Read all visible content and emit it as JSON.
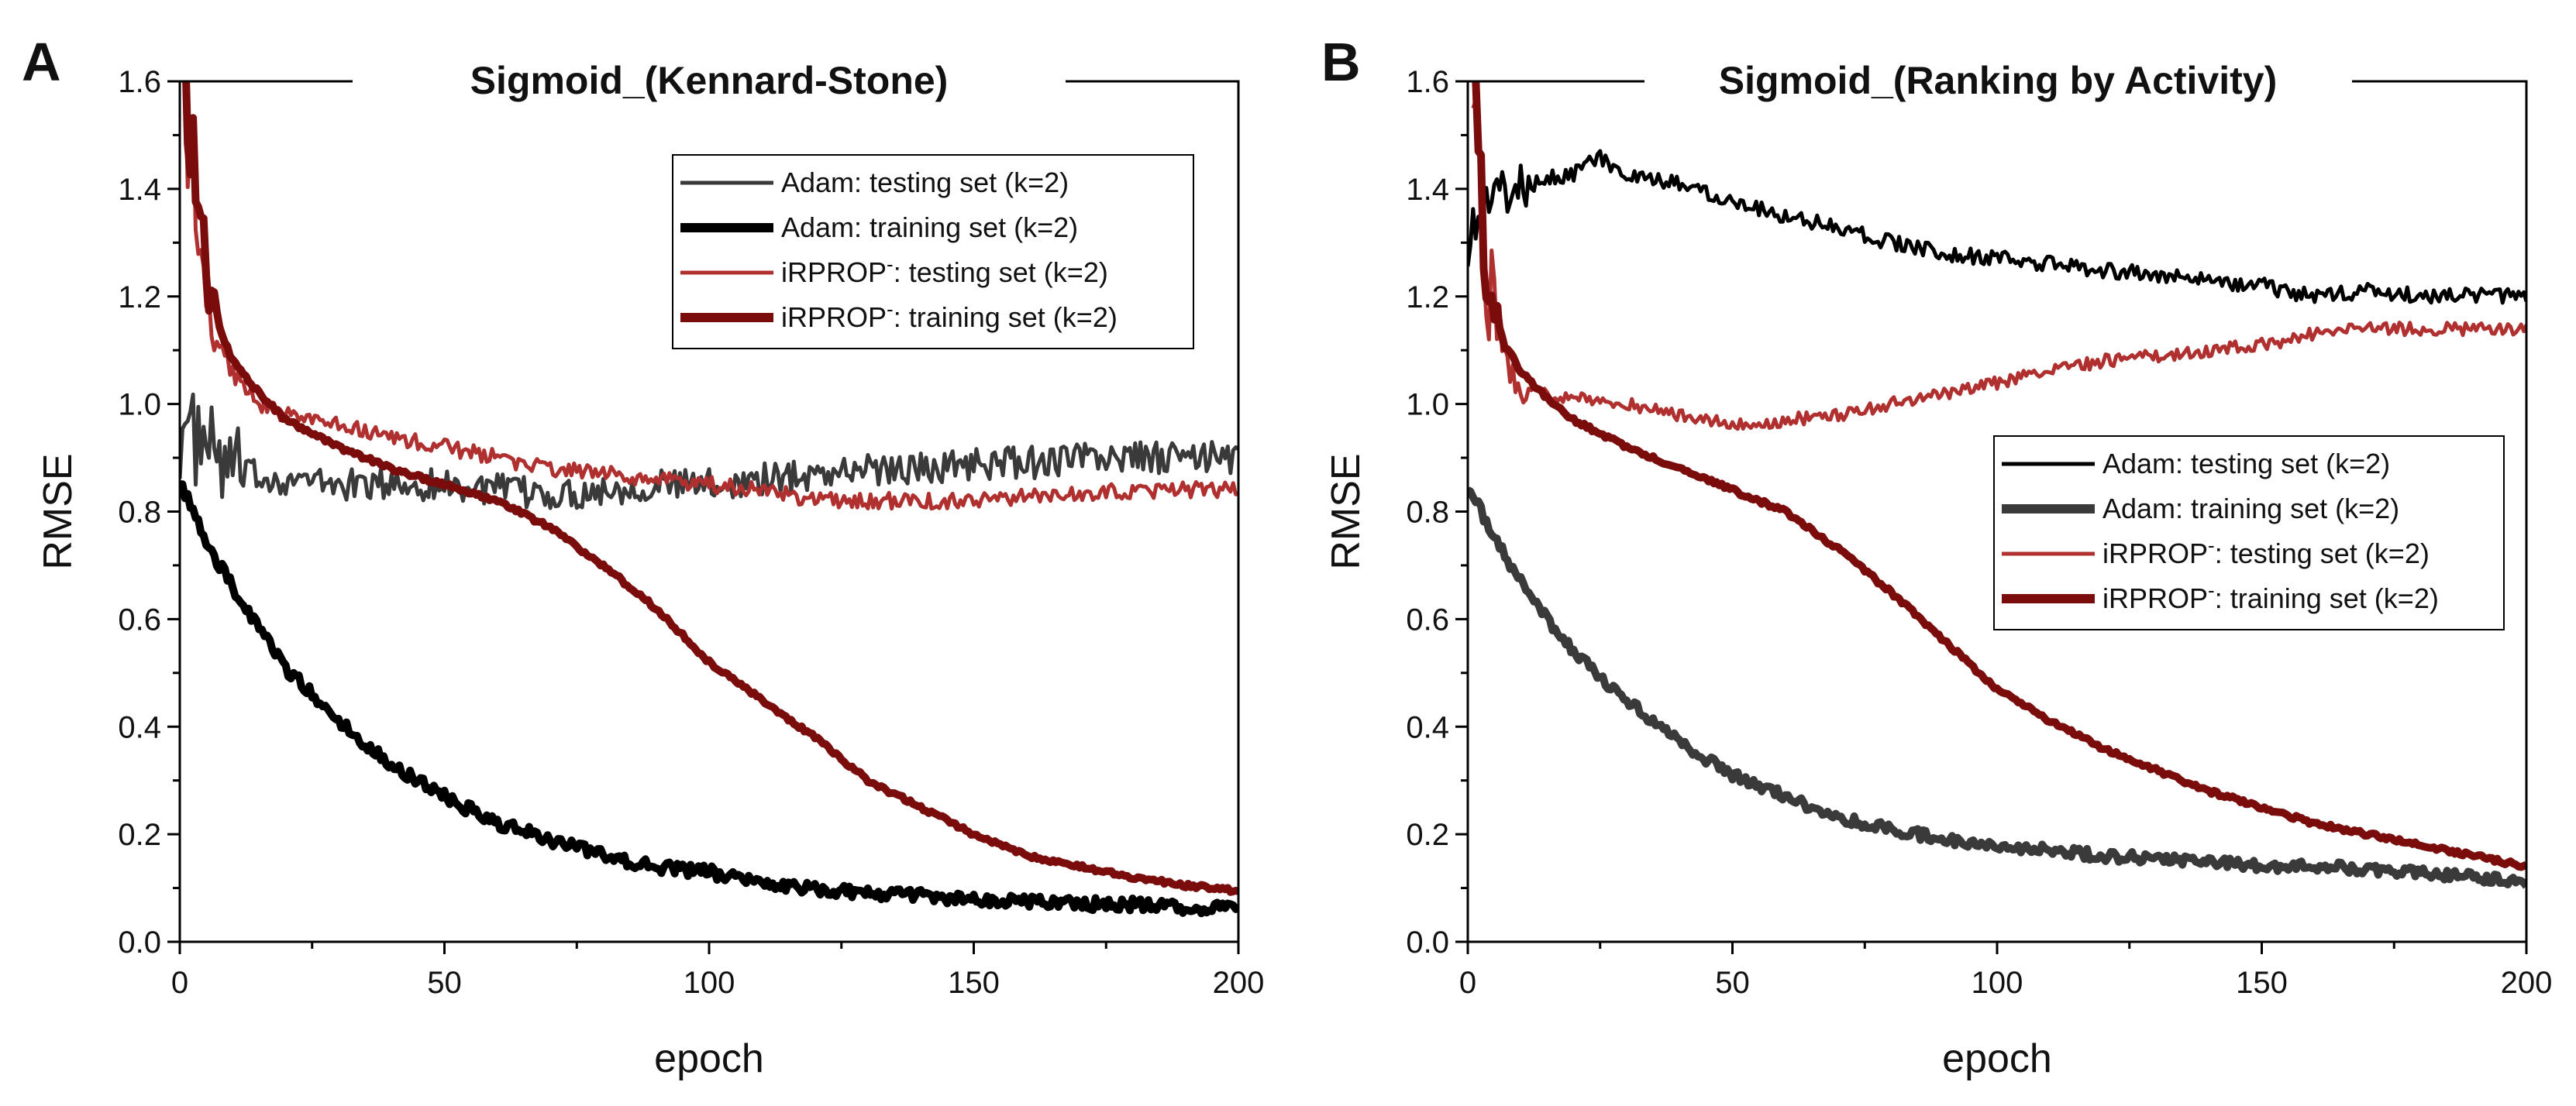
{
  "chart_data": [
    {
      "type": "line",
      "panel_label": "A",
      "title": "Sigmoid_(Kennard-Stone)",
      "xlabel": "epoch",
      "ylabel": "RMSE",
      "xlim": [
        0,
        200
      ],
      "ylim": [
        0,
        1.6
      ],
      "xticks": [
        "0",
        "50",
        "100",
        "150",
        "200"
      ],
      "yticks": [
        "0.0",
        "0.2",
        "0.4",
        "0.6",
        "0.8",
        "1.0",
        "1.2",
        "1.4",
        "1.6"
      ],
      "legend_position": "top-right",
      "series": [
        {
          "name": "Adam: testing set (k=2)",
          "legend_label": "Adam: testing set (k=2)",
          "color": "#3a3a3a",
          "width": "thin",
          "noise": 0.03,
          "x": [
            0,
            5,
            10,
            20,
            30,
            40,
            50,
            60,
            70,
            80,
            90,
            100,
            110,
            120,
            130,
            140,
            150,
            160,
            170,
            180,
            190,
            200
          ],
          "values": [
            0.95,
            0.92,
            0.87,
            0.86,
            0.85,
            0.85,
            0.85,
            0.84,
            0.83,
            0.84,
            0.85,
            0.85,
            0.86,
            0.87,
            0.88,
            0.88,
            0.89,
            0.89,
            0.9,
            0.9,
            0.9,
            0.9
          ]
        },
        {
          "name": "Adam: training set (k=2)",
          "legend_label": "Adam: training set (k=2)",
          "color": "#000000",
          "width": "thick",
          "noise": 0.012,
          "x": [
            0,
            5,
            10,
            15,
            20,
            30,
            40,
            50,
            60,
            70,
            80,
            90,
            100,
            110,
            120,
            130,
            140,
            150,
            160,
            170,
            180,
            190,
            200
          ],
          "values": [
            0.86,
            0.74,
            0.66,
            0.58,
            0.51,
            0.41,
            0.33,
            0.27,
            0.22,
            0.19,
            0.16,
            0.14,
            0.13,
            0.11,
            0.1,
            0.09,
            0.085,
            0.08,
            0.075,
            0.07,
            0.07,
            0.065,
            0.06
          ]
        },
        {
          "name": "iRPROP-: testing set (k=2)",
          "legend_label": "iRPROP",
          "legend_sup": "-",
          "legend_rest": ": testing set (k=2)",
          "color": "#b03030",
          "width": "thin",
          "noise": 0.015,
          "x": [
            1,
            3,
            5,
            7,
            10,
            15,
            20,
            30,
            40,
            50,
            60,
            70,
            80,
            90,
            100,
            110,
            120,
            130,
            140,
            150,
            160,
            170,
            180,
            190,
            200
          ],
          "values": [
            1.6,
            1.3,
            1.2,
            1.1,
            1.05,
            1.0,
            0.98,
            0.96,
            0.94,
            0.92,
            0.9,
            0.88,
            0.87,
            0.86,
            0.85,
            0.84,
            0.82,
            0.82,
            0.82,
            0.82,
            0.83,
            0.83,
            0.84,
            0.84,
            0.84
          ]
        },
        {
          "name": "iRPROP-: training set (k=2)",
          "legend_label": "iRPROP",
          "legend_sup": "-",
          "legend_rest": ": training set (k=2)",
          "color": "#7a0c0c",
          "width": "thick",
          "noise": 0.004,
          "x": [
            1,
            3,
            5,
            7,
            10,
            15,
            20,
            30,
            40,
            50,
            60,
            70,
            80,
            90,
            100,
            110,
            120,
            130,
            140,
            150,
            160,
            170,
            180,
            190,
            200
          ],
          "values": [
            1.6,
            1.35,
            1.25,
            1.15,
            1.08,
            1.02,
            0.97,
            0.92,
            0.88,
            0.85,
            0.82,
            0.77,
            0.7,
            0.62,
            0.52,
            0.45,
            0.38,
            0.3,
            0.25,
            0.2,
            0.16,
            0.14,
            0.12,
            0.105,
            0.095
          ]
        }
      ]
    },
    {
      "type": "line",
      "panel_label": "B",
      "title": "Sigmoid_(Ranking by Activity)",
      "xlabel": "epoch",
      "ylabel": "RMSE",
      "xlim": [
        0,
        200
      ],
      "ylim": [
        0,
        1.6
      ],
      "xticks": [
        "0",
        "50",
        "100",
        "150",
        "200"
      ],
      "yticks": [
        "0.0",
        "0.2",
        "0.4",
        "0.6",
        "0.8",
        "1.0",
        "1.2",
        "1.4",
        "1.6"
      ],
      "legend_position": "center-right",
      "series": [
        {
          "name": "Adam: testing set (k=2)",
          "legend_label": "Adam: testing set (k=2)",
          "color": "#000000",
          "width": "thin",
          "noise": 0.015,
          "x": [
            0,
            3,
            5,
            10,
            15,
            20,
            25,
            30,
            40,
            50,
            60,
            70,
            80,
            90,
            100,
            110,
            120,
            130,
            140,
            150,
            160,
            170,
            180,
            190,
            200
          ],
          "values": [
            1.3,
            1.38,
            1.39,
            1.4,
            1.42,
            1.43,
            1.46,
            1.42,
            1.41,
            1.38,
            1.35,
            1.33,
            1.3,
            1.28,
            1.27,
            1.26,
            1.25,
            1.24,
            1.23,
            1.22,
            1.2,
            1.21,
            1.2,
            1.2,
            1.2
          ]
        },
        {
          "name": "Adam: training set (k=2)",
          "legend_label": "Adam: training set (k=2)",
          "color": "#3a3a3a",
          "width": "thick",
          "noise": 0.01,
          "x": [
            0,
            5,
            10,
            15,
            20,
            25,
            30,
            35,
            40,
            50,
            60,
            70,
            80,
            90,
            100,
            110,
            120,
            130,
            140,
            150,
            160,
            170,
            180,
            190,
            200
          ],
          "values": [
            0.85,
            0.75,
            0.67,
            0.6,
            0.54,
            0.49,
            0.45,
            0.41,
            0.37,
            0.31,
            0.27,
            0.23,
            0.21,
            0.19,
            0.18,
            0.17,
            0.16,
            0.155,
            0.15,
            0.14,
            0.14,
            0.135,
            0.13,
            0.12,
            0.11
          ]
        },
        {
          "name": "iRPROP-: testing set (k=2)",
          "legend_label": "iRPROP",
          "legend_sup": "-",
          "legend_rest": ": testing set (k=2)",
          "color": "#b03030",
          "width": "thin",
          "noise": 0.012,
          "x": [
            1,
            3,
            5,
            7,
            10,
            15,
            20,
            30,
            40,
            50,
            60,
            70,
            80,
            90,
            100,
            110,
            120,
            130,
            140,
            150,
            160,
            170,
            180,
            190,
            200
          ],
          "values": [
            1.6,
            1.3,
            1.15,
            1.08,
            1.04,
            1.02,
            1.01,
            1.0,
            0.98,
            0.96,
            0.97,
            0.98,
            1.0,
            1.02,
            1.04,
            1.06,
            1.08,
            1.09,
            1.1,
            1.11,
            1.13,
            1.14,
            1.14,
            1.14,
            1.14
          ]
        },
        {
          "name": "iRPROP-: training set (k=2)",
          "legend_label": "iRPROP",
          "legend_sup": "-",
          "legend_rest": ": training set (k=2)",
          "color": "#7a0c0c",
          "width": "thick",
          "noise": 0.004,
          "x": [
            1,
            3,
            5,
            7,
            10,
            15,
            20,
            30,
            40,
            50,
            60,
            70,
            80,
            90,
            100,
            110,
            120,
            130,
            140,
            150,
            160,
            170,
            180,
            190,
            200
          ],
          "values": [
            1.6,
            1.3,
            1.2,
            1.12,
            1.06,
            1.01,
            0.97,
            0.92,
            0.88,
            0.84,
            0.8,
            0.73,
            0.65,
            0.56,
            0.47,
            0.41,
            0.36,
            0.32,
            0.28,
            0.25,
            0.22,
            0.2,
            0.18,
            0.16,
            0.14
          ]
        }
      ]
    }
  ]
}
